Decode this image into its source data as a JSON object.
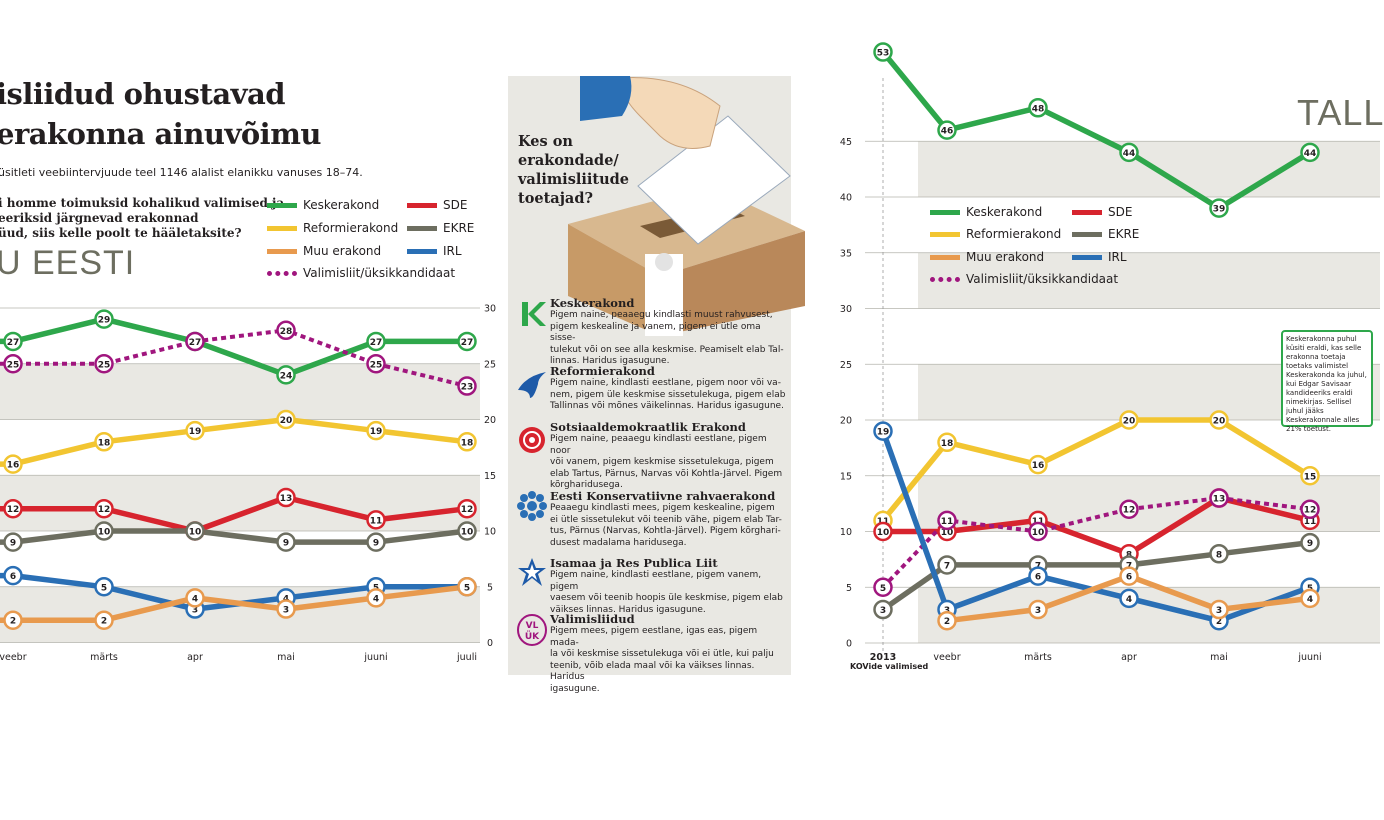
{
  "left_panel": {
    "headline_lines": [
      "isliidud ohustavad",
      "erakonna ainuvõimu"
    ],
    "subtitle": "üsitleti veebiintervjuude teel 1146 alalist elanikku vanuses 18–74.",
    "question_lines": [
      "i homme toimuksid kohalikud valimised ja",
      "eeriksid järgnevad erakonnad",
      "üud, siis kelle poolt te hääletaksite?"
    ],
    "big_title": "U EESTI"
  },
  "legend": {
    "keskerakond": "Keskerakond",
    "sde": "SDE",
    "reform": "Reformierakond",
    "ekre": "EKRE",
    "muu": "Muu erakond",
    "irl": "IRL",
    "valimisliit": "Valimisliit/üksikkandidaat"
  },
  "middle_panel": {
    "title_lines": [
      "Kes on",
      "erakondade/",
      "valimisliitude",
      "toetajad?"
    ],
    "parties": [
      {
        "name": "Keskerakond",
        "text": [
          "Pigem naine, peaaegu kindlasti muust rahvusest,",
          "pigem keskealine ja vanem, pigem ei ütle oma sisse-",
          "tulekut või on see alla keskmise. Peamiselt elab Tal-",
          "linnas. Haridus igasugune."
        ]
      },
      {
        "name": "Reformierakond",
        "text": [
          "Pigem naine, kindlasti eestlane, pigem noor või va-",
          "nem, pigem üle keskmise sissetulekuga, pigem elab",
          "Tallinnas või mõnes väikelinnas. Haridus igasugune."
        ]
      },
      {
        "name": "Sotsiaaldemokraatlik Erakond",
        "text": [
          "Pigem naine, peaaegu kindlasti eestlane, pigem noor",
          "või vanem, pigem keskmise sissetulekuga, pigem",
          "elab Tartus, Pärnus, Narvas või Kohtla-Järvel. Pigem",
          "kõrgharidusega."
        ]
      },
      {
        "name": "Eesti Konservatiivne rahvaerakond",
        "text": [
          "Peaaegu kindlasti mees, pigem keskealine, pigem",
          "ei ütle sissetulekut või teenib vähe, pigem elab Tar-",
          "tus, Pärnus (Narvas, Kohtla-Järvel). Pigem kõrghari-",
          "dusest madalama haridusega."
        ]
      },
      {
        "name": "Isamaa ja Res Publica Liit",
        "text": [
          "Pigem naine, kindlasti eestlane, pigem vanem, pigem",
          "vaesem või teenib hoopis üle keskmise, pigem elab",
          "väikses linnas. Haridus igasugune."
        ]
      },
      {
        "name": "Valimisliidud",
        "text": [
          "Pigem mees, pigem eestlane, igas eas, pigem mada-",
          "la või keskmise sissetulekuga või ei ütle, kui palju",
          "teenib, võib elada maal või ka väikses linnas. Haridus",
          "igasugune."
        ]
      }
    ]
  },
  "right_panel": {
    "big_title": "TALL",
    "note": "Keskerakonna puhul küsiti eraldi, kas selle erakonna toetaja toetaks valimistel Keskerakonda ka juhul, kui Edgar Savisaar kandideeriks eraldi nimekirjas. Sellisel juhul jääks Keskerakonnale alles 21% toetust.",
    "x_sub": "KOVide valimised"
  },
  "colors": {
    "kesk": "#2ea74b",
    "reform": "#f2c531",
    "sde": "#d7242e",
    "ekre": "#6d6e60",
    "irl": "#2a6fb5",
    "muu": "#e89a4e",
    "valimisliit": "#a0167e",
    "band": "#e9e8e3",
    "grid": "#b5b5ad"
  },
  "chart_data": [
    {
      "type": "line",
      "title": "",
      "categories": [
        "veebr",
        "märts",
        "apr",
        "mai",
        "juuni",
        "juuli"
      ],
      "ylim": [
        0,
        30
      ],
      "yticks": [
        0,
        5,
        10,
        15,
        20,
        25,
        30
      ],
      "legend_position": "top-right",
      "series": [
        {
          "name": "Keskerakond",
          "key": "kesk",
          "values": [
            27,
            29,
            27,
            24,
            27,
            27
          ]
        },
        {
          "name": "Valimisliit/üksikkandidaat",
          "key": "valimisliit",
          "values": [
            25,
            25,
            27,
            28,
            25,
            23
          ]
        },
        {
          "name": "Reformierakond",
          "key": "reform",
          "values": [
            16,
            18,
            19,
            20,
            19,
            18
          ]
        },
        {
          "name": "SDE",
          "key": "sde",
          "values": [
            12,
            12,
            10,
            13,
            11,
            12
          ]
        },
        {
          "name": "EKRE",
          "key": "ekre",
          "values": [
            9,
            10,
            10,
            9,
            9,
            10
          ]
        },
        {
          "name": "IRL",
          "key": "irl",
          "values": [
            6,
            5,
            3,
            4,
            5,
            5
          ]
        },
        {
          "name": "Muu erakond",
          "key": "muu",
          "values": [
            2,
            2,
            4,
            3,
            4,
            5
          ]
        }
      ]
    },
    {
      "type": "line",
      "title": "",
      "categories": [
        "2013",
        "veebr",
        "märts",
        "apr",
        "mai",
        "juuni"
      ],
      "ylim": [
        0,
        53
      ],
      "yticks": [
        0,
        5,
        10,
        15,
        20,
        25,
        30,
        35,
        40,
        45
      ],
      "legend_position": "top-left",
      "series": [
        {
          "name": "Keskerakond",
          "key": "kesk",
          "values": [
            53,
            46,
            48,
            44,
            39,
            44
          ]
        },
        {
          "name": "Reformierakond",
          "key": "reform",
          "values": [
            11,
            18,
            16,
            20,
            20,
            15
          ]
        },
        {
          "name": "SDE",
          "key": "sde",
          "values": [
            10,
            10,
            11,
            8,
            13,
            11
          ]
        },
        {
          "name": "Valimisliit/üksikkandidaat",
          "key": "valimisliit",
          "values": [
            5,
            11,
            10,
            12,
            13,
            12
          ]
        },
        {
          "name": "EKRE",
          "key": "ekre",
          "values": [
            3,
            7,
            7,
            7,
            8,
            9
          ]
        },
        {
          "name": "IRL",
          "key": "irl",
          "values": [
            19,
            3,
            6,
            4,
            2,
            5
          ]
        },
        {
          "name": "Muu erakond",
          "key": "muu",
          "values": [
            null,
            2,
            3,
            6,
            3,
            4
          ]
        }
      ]
    }
  ]
}
